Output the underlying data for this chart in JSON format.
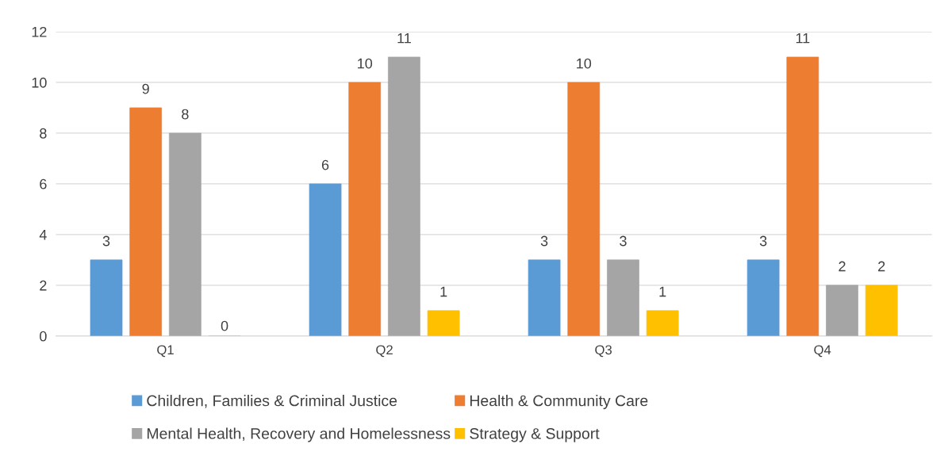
{
  "chart_data": {
    "type": "bar",
    "categories": [
      "Q1",
      "Q2",
      "Q3",
      "Q4"
    ],
    "series": [
      {
        "name": "Children, Families & Criminal Justice",
        "color": "#5b9bd5",
        "values": [
          3,
          6,
          3,
          3
        ]
      },
      {
        "name": "Health & Community Care",
        "color": "#ed7d31",
        "values": [
          9,
          10,
          10,
          11
        ]
      },
      {
        "name": "Mental Health, Recovery and Homelessness",
        "color": "#a5a5a5",
        "values": [
          8,
          11,
          3,
          2
        ]
      },
      {
        "name": "Strategy & Support",
        "color": "#ffc000",
        "values": [
          0,
          1,
          1,
          2
        ]
      }
    ],
    "ylim": [
      0,
      12
    ],
    "yticks": [
      0,
      2,
      4,
      6,
      8,
      10,
      12
    ],
    "grid": "y",
    "legend": "bottom",
    "data_labels": true
  }
}
